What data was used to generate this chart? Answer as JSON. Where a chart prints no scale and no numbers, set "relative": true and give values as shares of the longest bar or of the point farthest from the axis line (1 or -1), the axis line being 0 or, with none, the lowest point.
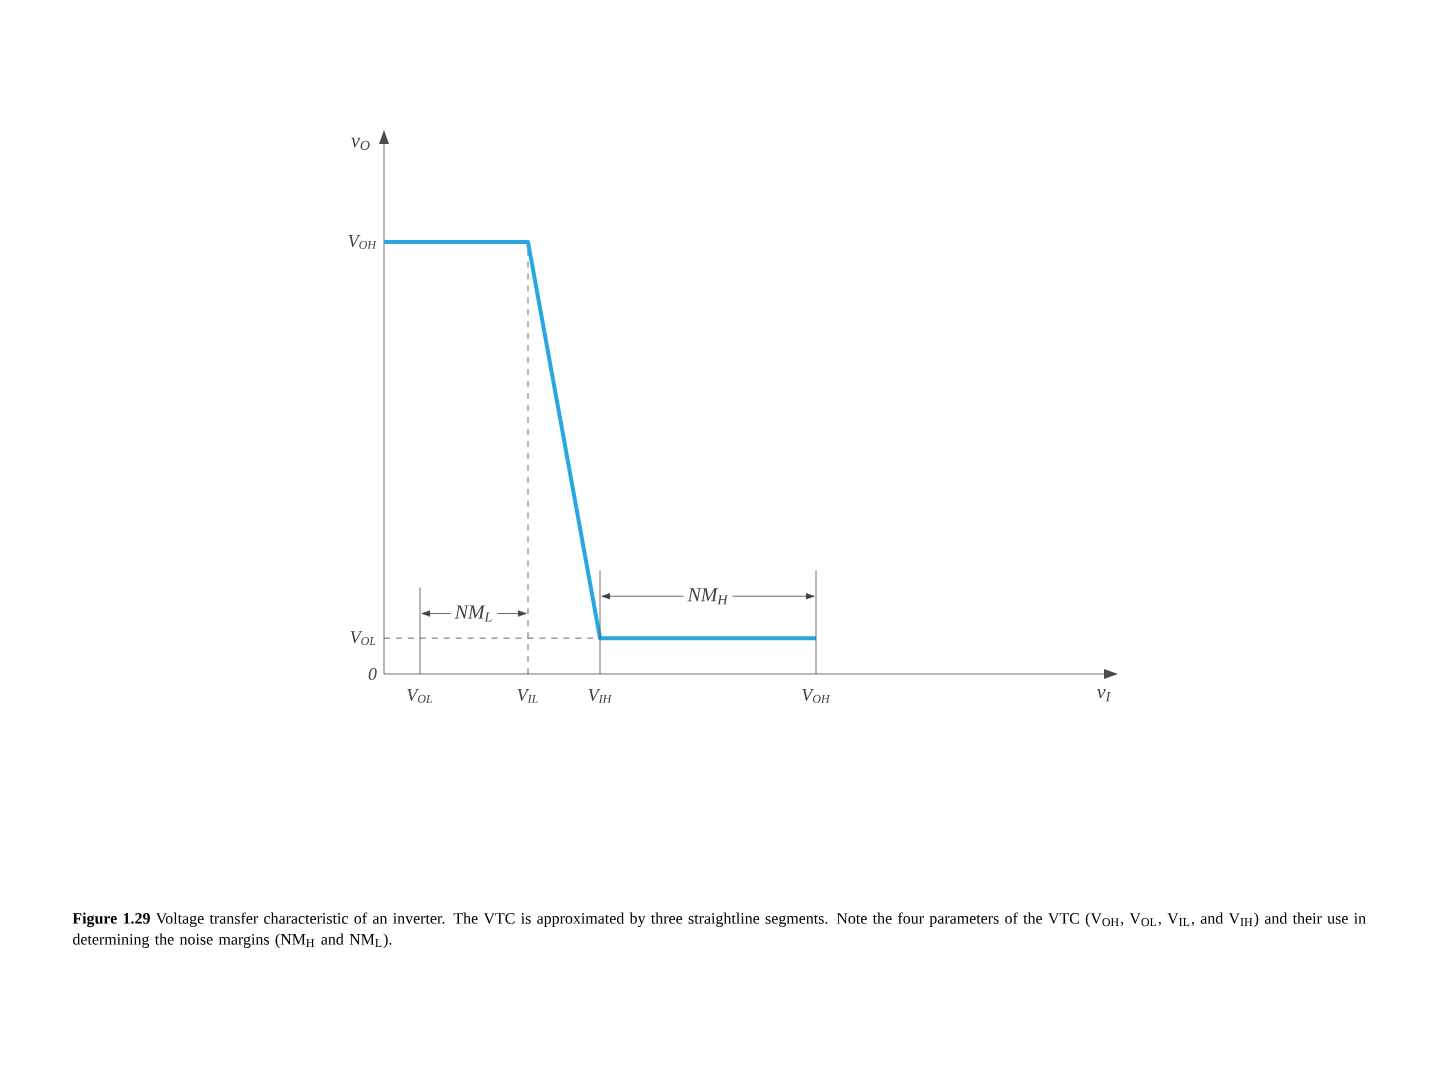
{
  "chart_data": {
    "type": "line",
    "relative": true,
    "categories": [
      null,
      "V$_{OL}$",
      null,
      null,
      "V$_{IL}$",
      null,
      "V$_{IH}$",
      null,
      null,
      null,
      null,
      null,
      "V$_{OH}$",
      null,
      null,
      null,
      null,
      null,
      null,
      null,
      null
    ],
    "series": [
      {
        "color": "#29a8e0",
        "values": [
          1,
          1,
          1,
          1,
          1,
          0.542,
          0.083,
          0.083,
          0.083,
          0.083,
          0.083,
          0.083,
          0.083,
          null,
          null,
          null,
          null,
          null,
          null,
          null,
          null
        ]
      }
    ],
    "xlabel": "v$_{I}$",
    "ylabel": "v$_{O}$",
    "ref_lines": [
      {
        "axis": "x",
        "value": "V$_{IL}$",
        "color": "#444444",
        "line_style": "dashed"
      },
      {
        "axis": "y",
        "value": 0.083,
        "color": "#444444",
        "line_style": "dashed"
      }
    ],
    "annotations": [
      "V$_{OH}$",
      "V$_{OL}$",
      "0",
      {
        "text": "NM$_{L}$",
        "y": 0.14
      },
      {
        "text": "NM$_{H}$",
        "y": 0.18
      },
      "**Figure 1.29** Voltage transfer characteristic of an inverter. The VTC is approximated by three straightline segments. Note the four parameters of the VTC (V$_{OH}$, V$_{OL}$, V$_{IL}$, and V$_{IH}$) and their use in determining the noise margins (NM$_{H}$ and NM$_{L}$)."
    ],
    "line_style": "solid",
    "marker": "none"
  }
}
